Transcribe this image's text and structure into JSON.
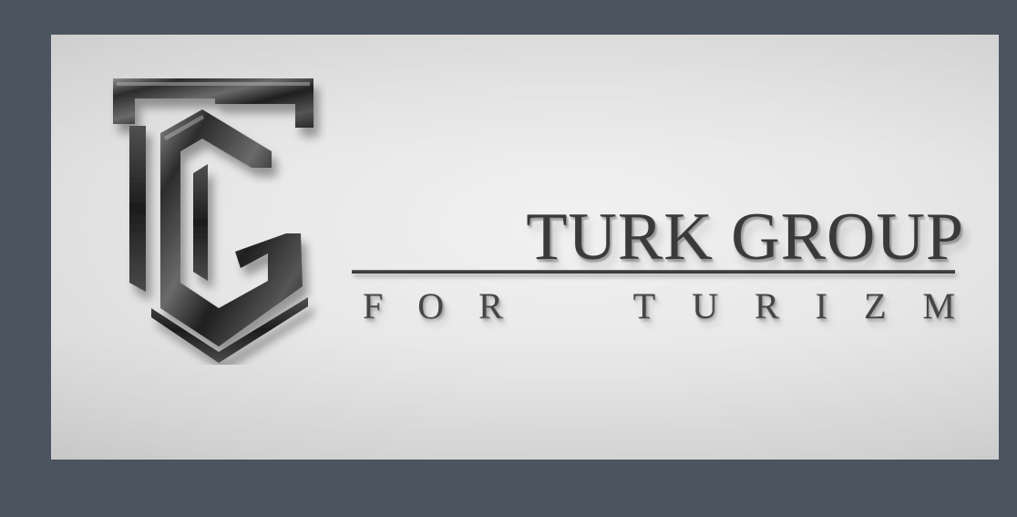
{
  "logo": {
    "name": "TURK GROUP",
    "tagline": "FOR TURIZM",
    "monogram": "TG"
  },
  "colors": {
    "frame": "#4b5560",
    "wall": "#e8e8e8",
    "metal": "#3a3a3a"
  },
  "icons": {
    "monogram": "tg-monogram-icon"
  }
}
